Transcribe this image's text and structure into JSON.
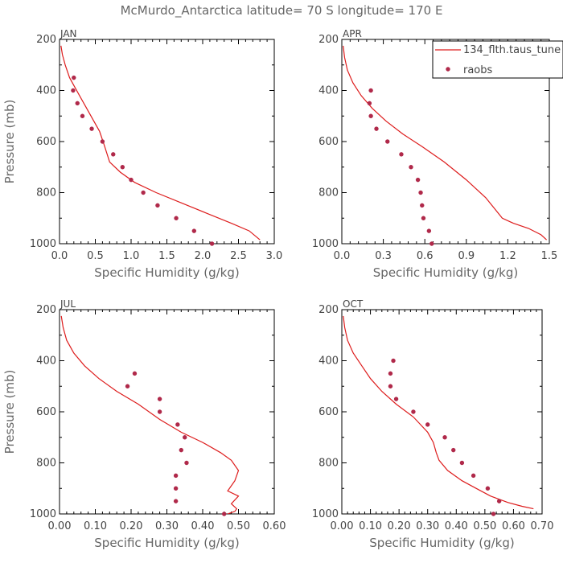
{
  "figure": {
    "title": "McMurdo_Antarctica  latitude= 70 S longitude= 170 E"
  },
  "legend": {
    "model_label": "134_flth.taus_tune",
    "obs_label": "raobs"
  },
  "chart_data": [
    {
      "type": "line",
      "panel_label": "JAN",
      "xlabel": "Specific Humidity (g/kg)",
      "ylabel": "Pressure (mb)",
      "xlim": [
        0.0,
        3.0
      ],
      "ylim": [
        1000,
        200
      ],
      "xticks": [
        0.0,
        0.5,
        1.0,
        1.5,
        2.0,
        2.5,
        3.0
      ],
      "xticklabels": [
        "0.0",
        "0.5",
        "1.0",
        "1.5",
        "2.0",
        "2.5",
        "3.0"
      ],
      "yticks": [
        200,
        400,
        600,
        800,
        1000
      ],
      "yticklabels": [
        "200",
        "400",
        "600",
        "800",
        "1000"
      ],
      "model": {
        "x": [
          0.02,
          0.04,
          0.08,
          0.14,
          0.2,
          0.28,
          0.36,
          0.46,
          0.56,
          0.62,
          0.7,
          0.85,
          1.05,
          1.35,
          1.7,
          2.05,
          2.4,
          2.65,
          2.8
        ],
        "y": [
          225,
          260,
          300,
          350,
          380,
          420,
          460,
          510,
          560,
          610,
          680,
          720,
          760,
          800,
          840,
          880,
          920,
          950,
          985
        ]
      },
      "raobs": {
        "x": [
          0.2,
          0.19,
          0.25,
          0.32,
          0.45,
          0.6,
          0.75,
          0.88,
          1.0,
          1.17,
          1.37,
          1.63,
          1.88,
          2.13
        ],
        "y": [
          350,
          400,
          450,
          500,
          550,
          600,
          650,
          700,
          750,
          800,
          850,
          900,
          950,
          1000
        ]
      }
    },
    {
      "type": "line",
      "panel_label": "APR",
      "xlabel": "Specific Humidity (g/kg)",
      "ylabel": "",
      "xlim": [
        0.0,
        1.5
      ],
      "ylim": [
        1000,
        200
      ],
      "xticks": [
        0.0,
        0.3,
        0.6,
        0.9,
        1.2,
        1.5
      ],
      "xticklabels": [
        "0.0",
        "0.3",
        "0.6",
        "0.9",
        "1.2",
        "1.5"
      ],
      "yticks": [
        200,
        400,
        600,
        800,
        1000
      ],
      "yticklabels": [
        "200",
        "400",
        "600",
        "800",
        "1000"
      ],
      "model": {
        "x": [
          0.01,
          0.02,
          0.04,
          0.08,
          0.14,
          0.22,
          0.32,
          0.44,
          0.58,
          0.74,
          0.9,
          1.04,
          1.1,
          1.16,
          1.24,
          1.35,
          1.44,
          1.48
        ],
        "y": [
          225,
          270,
          320,
          370,
          420,
          470,
          520,
          570,
          620,
          680,
          750,
          820,
          860,
          900,
          920,
          940,
          965,
          985
        ]
      },
      "raobs": {
        "x": [
          0.21,
          0.2,
          0.21,
          0.25,
          0.33,
          0.43,
          0.5,
          0.55,
          0.57,
          0.58,
          0.59,
          0.63,
          0.65
        ],
        "y": [
          400,
          450,
          500,
          550,
          600,
          650,
          700,
          750,
          800,
          850,
          900,
          950,
          1000
        ]
      }
    },
    {
      "type": "line",
      "panel_label": "JUL",
      "xlabel": "Specific Humidity (g/kg)",
      "ylabel": "Pressure (mb)",
      "xlim": [
        0.0,
        0.6
      ],
      "ylim": [
        1000,
        200
      ],
      "xticks": [
        0.0,
        0.1,
        0.2,
        0.3,
        0.4,
        0.5,
        0.6
      ],
      "xticklabels": [
        "0.00",
        "0.10",
        "0.20",
        "0.30",
        "0.40",
        "0.50",
        "0.60"
      ],
      "yticks": [
        200,
        400,
        600,
        800,
        1000
      ],
      "yticklabels": [
        "200",
        "400",
        "600",
        "800",
        "1000"
      ],
      "model": {
        "x": [
          0.005,
          0.01,
          0.02,
          0.04,
          0.07,
          0.11,
          0.16,
          0.22,
          0.28,
          0.34,
          0.4,
          0.45,
          0.48,
          0.5,
          0.49,
          0.47,
          0.5,
          0.48,
          0.495,
          0.49,
          0.47
        ],
        "y": [
          225,
          270,
          320,
          370,
          420,
          470,
          520,
          570,
          630,
          680,
          720,
          760,
          790,
          830,
          870,
          910,
          930,
          960,
          980,
          990,
          1000
        ]
      },
      "raobs": {
        "x": [
          0.21,
          0.19,
          0.28,
          0.28,
          0.33,
          0.35,
          0.34,
          0.355,
          0.325,
          0.325,
          0.325,
          0.46
        ],
        "y": [
          450,
          500,
          550,
          600,
          650,
          700,
          750,
          800,
          850,
          900,
          950,
          1000
        ]
      }
    },
    {
      "type": "line",
      "panel_label": "OCT",
      "xlabel": "Specific Humidity (g/kg)",
      "ylabel": "",
      "xlim": [
        0.0,
        0.7
      ],
      "ylim": [
        1000,
        200
      ],
      "xticks": [
        0.0,
        0.1,
        0.2,
        0.3,
        0.4,
        0.5,
        0.6,
        0.7
      ],
      "xticklabels": [
        "0.00",
        "0.10",
        "0.20",
        "0.30",
        "0.40",
        "0.50",
        "0.60",
        "0.70"
      ],
      "yticks": [
        200,
        400,
        600,
        800,
        1000
      ],
      "yticklabels": [
        "200",
        "400",
        "600",
        "800",
        "1000"
      ],
      "model": {
        "x": [
          0.005,
          0.01,
          0.02,
          0.04,
          0.07,
          0.1,
          0.14,
          0.19,
          0.25,
          0.3,
          0.32,
          0.33,
          0.34,
          0.37,
          0.42,
          0.47,
          0.52,
          0.58,
          0.63,
          0.67
        ],
        "y": [
          225,
          270,
          320,
          370,
          420,
          470,
          520,
          570,
          620,
          680,
          720,
          760,
          790,
          830,
          870,
          900,
          930,
          955,
          970,
          980
        ]
      },
      "raobs": {
        "x": [
          0.18,
          0.17,
          0.17,
          0.19,
          0.25,
          0.3,
          0.36,
          0.39,
          0.42,
          0.46,
          0.51,
          0.55,
          0.53
        ],
        "y": [
          400,
          450,
          500,
          550,
          600,
          650,
          700,
          750,
          800,
          850,
          900,
          950,
          1000
        ]
      }
    }
  ]
}
